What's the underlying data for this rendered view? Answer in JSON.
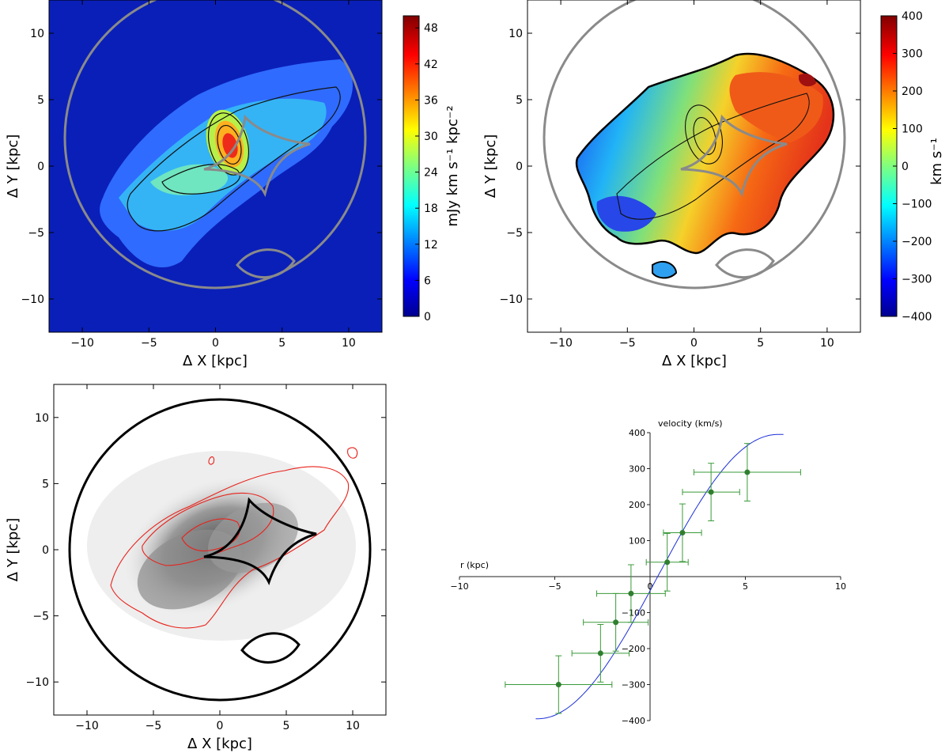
{
  "chart_data": [
    {
      "type": "heatmap",
      "title": "",
      "xlabel": "Δ X [kpc]",
      "ylabel": "Δ Y [kpc]",
      "xlim": [
        -12.5,
        12.5
      ],
      "ylim": [
        -12.5,
        12.5
      ],
      "xticks": [
        "−10",
        "−5",
        "0",
        "5",
        "10"
      ],
      "yticks": [
        "10",
        "5",
        "0",
        "−5",
        "−10"
      ],
      "colormap": "jet",
      "colorbar": {
        "label": "mJy km s⁻¹ kpc⁻²",
        "range": [
          0,
          50
        ],
        "ticks": [
          "0",
          "6",
          "12",
          "18",
          "24",
          "30",
          "36",
          "42",
          "48"
        ]
      },
      "overlays": [
        "grey critical circle",
        "grey caustic",
        "black flux contours"
      ]
    },
    {
      "type": "heatmap",
      "title": "",
      "xlabel": "Δ X [kpc]",
      "ylabel": "Δ Y [kpc]",
      "xlim": [
        -12.5,
        12.5
      ],
      "ylim": [
        -12.5,
        12.5
      ],
      "xticks": [
        "−10",
        "−5",
        "0",
        "5",
        "10"
      ],
      "yticks": [
        "10",
        "5",
        "0",
        "−5",
        "−10"
      ],
      "colormap": "jet",
      "colorbar": {
        "label": "km s⁻¹",
        "range": [
          -400,
          400
        ],
        "ticks": [
          "−400",
          "−300",
          "−200",
          "−100",
          "0",
          "100",
          "200",
          "300",
          "400"
        ]
      },
      "overlays": [
        "grey critical circle",
        "grey caustic",
        "black flux contours"
      ]
    },
    {
      "type": "heatmap",
      "title": "",
      "xlabel": "Δ X [kpc]",
      "ylabel": "Δ Y [kpc]",
      "xlim": [
        -12.5,
        12.5
      ],
      "ylim": [
        -12.5,
        12.5
      ],
      "xticks": [
        "−10",
        "−5",
        "0",
        "5",
        "10"
      ],
      "yticks": [
        "10",
        "5",
        "0",
        "−5",
        "−10"
      ],
      "colormap": "greyscale",
      "overlays": [
        "black critical circle",
        "black caustic",
        "red contours"
      ]
    },
    {
      "type": "scatter",
      "title": "",
      "xlabel": "r (kpc)",
      "ylabel": "velocity (km/s)",
      "xlim": [
        -10,
        10
      ],
      "ylim": [
        -400,
        400
      ],
      "xticks": [
        "−10",
        "−5",
        "0",
        "5",
        "10"
      ],
      "yticks": [
        "400",
        "300",
        "200",
        "100",
        "−100",
        "−200",
        "−300",
        "−400"
      ],
      "series": [
        {
          "name": "data",
          "color": "#2f7f2f",
          "points": [
            {
              "x": -4.8,
              "y": -300,
              "xerr": 2.8,
              "yerr": 80
            },
            {
              "x": -2.6,
              "y": -213,
              "xerr": 1.5,
              "yerr": 80
            },
            {
              "x": -1.8,
              "y": -127,
              "xerr": 1.7,
              "yerr": 80
            },
            {
              "x": -1.0,
              "y": -47,
              "xerr": 1.8,
              "yerr": 80
            },
            {
              "x": 0.9,
              "y": 40,
              "xerr": 1.1,
              "yerr": 80
            },
            {
              "x": 1.7,
              "y": 122,
              "xerr": 1.0,
              "yerr": 80
            },
            {
              "x": 3.2,
              "y": 235,
              "xerr": 1.5,
              "yerr": 80
            },
            {
              "x": 5.1,
              "y": 290,
              "xerr": 2.8,
              "yerr": 80
            }
          ]
        },
        {
          "name": "model",
          "color": "#1c2fd8",
          "curve": {
            "x": [
              -6,
              7
            ],
            "form": "arctan-like",
            "vmax": 395,
            "x0": 0.4
          }
        }
      ]
    }
  ]
}
